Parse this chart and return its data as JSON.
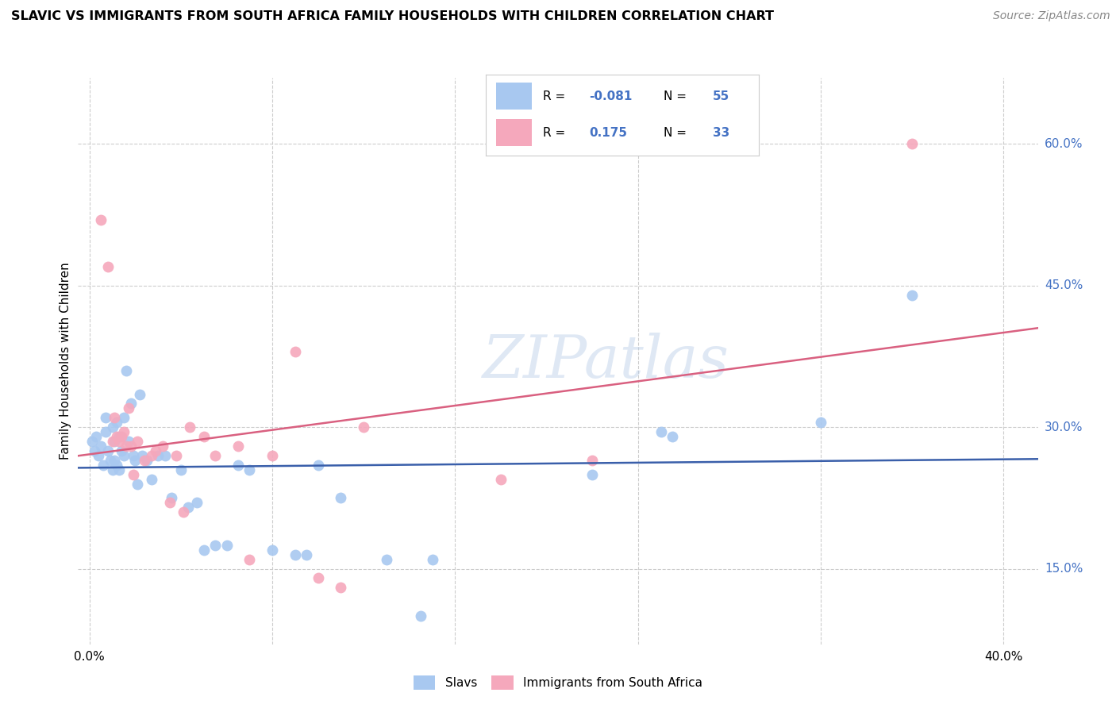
{
  "title": "SLAVIC VS IMMIGRANTS FROM SOUTH AFRICA FAMILY HOUSEHOLDS WITH CHILDREN CORRELATION CHART",
  "source": "Source: ZipAtlas.com",
  "ylabel": "Family Households with Children",
  "watermark": "ZIPatlas",
  "blue_R": -0.081,
  "blue_N": 55,
  "pink_R": 0.175,
  "pink_N": 33,
  "ytick_vals": [
    0.15,
    0.3,
    0.45,
    0.6
  ],
  "ytick_labels": [
    "15.0%",
    "30.0%",
    "45.0%",
    "60.0%"
  ],
  "xtick_vals": [
    0.0,
    0.08,
    0.16,
    0.24,
    0.32,
    0.4
  ],
  "xlim": [
    -0.005,
    0.415
  ],
  "ylim": [
    0.07,
    0.67
  ],
  "blue_color": "#a8c8f0",
  "pink_color": "#f5a8bc",
  "blue_line_color": "#3a5faa",
  "pink_line_color": "#d96080",
  "grid_color": "#cccccc",
  "slavs_x": [
    0.001,
    0.002,
    0.003,
    0.004,
    0.005,
    0.006,
    0.007,
    0.007,
    0.008,
    0.009,
    0.01,
    0.01,
    0.011,
    0.011,
    0.012,
    0.012,
    0.013,
    0.013,
    0.014,
    0.015,
    0.015,
    0.016,
    0.017,
    0.018,
    0.019,
    0.02,
    0.021,
    0.022,
    0.023,
    0.025,
    0.027,
    0.03,
    0.033,
    0.036,
    0.04,
    0.043,
    0.047,
    0.05,
    0.055,
    0.06,
    0.065,
    0.07,
    0.08,
    0.09,
    0.095,
    0.1,
    0.11,
    0.13,
    0.145,
    0.15,
    0.22,
    0.25,
    0.255,
    0.32,
    0.36
  ],
  "slavs_y": [
    0.285,
    0.275,
    0.29,
    0.27,
    0.28,
    0.26,
    0.295,
    0.31,
    0.275,
    0.265,
    0.3,
    0.255,
    0.285,
    0.265,
    0.305,
    0.26,
    0.29,
    0.255,
    0.275,
    0.31,
    0.27,
    0.36,
    0.285,
    0.325,
    0.27,
    0.265,
    0.24,
    0.335,
    0.27,
    0.265,
    0.245,
    0.27,
    0.27,
    0.225,
    0.255,
    0.215,
    0.22,
    0.17,
    0.175,
    0.175,
    0.26,
    0.255,
    0.17,
    0.165,
    0.165,
    0.26,
    0.225,
    0.16,
    0.1,
    0.16,
    0.25,
    0.295,
    0.29,
    0.305,
    0.44
  ],
  "immigrants_x": [
    0.005,
    0.008,
    0.01,
    0.011,
    0.012,
    0.013,
    0.014,
    0.015,
    0.016,
    0.017,
    0.018,
    0.019,
    0.021,
    0.024,
    0.027,
    0.029,
    0.032,
    0.035,
    0.038,
    0.041,
    0.044,
    0.05,
    0.055,
    0.065,
    0.07,
    0.08,
    0.09,
    0.1,
    0.11,
    0.12,
    0.18,
    0.22,
    0.36
  ],
  "immigrants_y": [
    0.52,
    0.47,
    0.285,
    0.31,
    0.29,
    0.285,
    0.29,
    0.295,
    0.28,
    0.32,
    0.28,
    0.25,
    0.285,
    0.265,
    0.27,
    0.275,
    0.28,
    0.22,
    0.27,
    0.21,
    0.3,
    0.29,
    0.27,
    0.28,
    0.16,
    0.27,
    0.38,
    0.14,
    0.13,
    0.3,
    0.245,
    0.265,
    0.6
  ]
}
